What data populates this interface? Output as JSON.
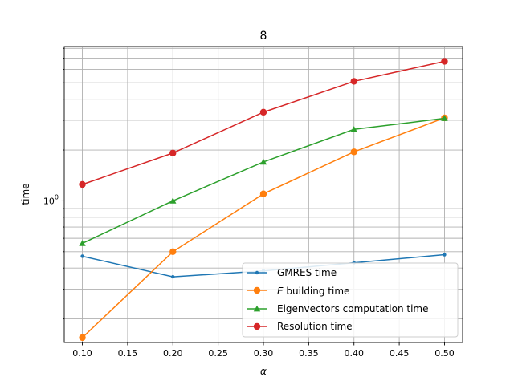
{
  "chart_data": {
    "type": "line",
    "title": "8",
    "xlabel": "α",
    "ylabel": "time",
    "yscale": "log",
    "xlim": [
      0.08,
      0.52
    ],
    "ylim": [
      0.145,
      8.2
    ],
    "x": [
      0.1,
      0.2,
      0.3,
      0.4,
      0.5
    ],
    "x_tick_labels": [
      "0.10",
      "0.15",
      "0.20",
      "0.25",
      "0.30",
      "0.35",
      "0.40",
      "0.45",
      "0.50"
    ],
    "y_tick_label": "10",
    "y_tick_label_exponent": "0",
    "grid": true,
    "legend_position": "lower-right",
    "series": [
      {
        "name": "GMRES time",
        "values": [
          0.47,
          0.355,
          0.385,
          0.43,
          0.48
        ],
        "color": "#1f77b4",
        "marker": "point"
      },
      {
        "name": "building time",
        "name_prefix": "E",
        "values": [
          0.155,
          0.5,
          1.1,
          1.95,
          3.1
        ],
        "color": "#ff7f0e",
        "marker": "circle"
      },
      {
        "name": "Eigenvectors computation time",
        "values": [
          0.56,
          1.0,
          1.7,
          2.65,
          3.08
        ],
        "color": "#2ca02c",
        "marker": "triangle"
      },
      {
        "name": "Resolution time",
        "values": [
          1.25,
          1.92,
          3.35,
          5.1,
          6.7
        ],
        "color": "#d62728",
        "marker": "circle"
      }
    ]
  }
}
